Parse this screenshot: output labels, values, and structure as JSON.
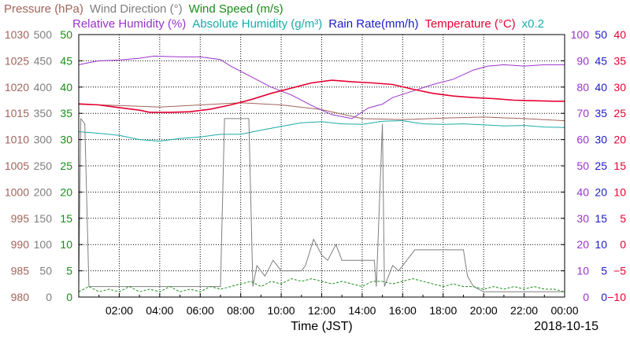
{
  "chart_data": {
    "type": "line",
    "date_label": "2018-10-15",
    "x_axis_label": "Time (JST)",
    "x_tick_labels": [
      "02:00",
      "04:00",
      "06:00",
      "08:00",
      "10:00",
      "12:00",
      "14:00",
      "16:00",
      "18:00",
      "20:00",
      "22:00",
      "00:00"
    ],
    "x_range_hours": [
      0,
      24
    ],
    "grid": true,
    "legend": {
      "row1": [
        {
          "text": "Pressure (hPa)",
          "color": "#a0645a"
        },
        {
          "text": "Wind Direction (°)",
          "color": "#7f7f7f"
        },
        {
          "text": "Wind Speed (m/s)",
          "color": "#1a8c1a"
        }
      ],
      "row2": [
        {
          "text": "Relative Humidity (%)",
          "color": "#9933cc"
        },
        {
          "text": "Absolute Humidity (g/m³)",
          "color": "#1aaaaa"
        },
        {
          "text": "Rain Rate(mm/h)",
          "color": "#1a1acc"
        },
        {
          "text": "Temperature (°C)",
          "color": "#e60033"
        },
        {
          "text": "x0.2",
          "color": "#1aaaaa"
        }
      ]
    },
    "axes": [
      {
        "name": "pressure",
        "color": "#a0645a",
        "range": [
          980,
          1030
        ],
        "ticks": [
          "1030",
          "1025",
          "1020",
          "1015",
          "1010",
          "1005",
          "1000",
          "995",
          "990",
          "985",
          "980"
        ]
      },
      {
        "name": "wind-direction",
        "color": "#7f7f7f",
        "range": [
          0,
          500
        ],
        "ticks": [
          "500",
          "450",
          "400",
          "350",
          "300",
          "250",
          "200",
          "150",
          "100",
          "50",
          "0"
        ]
      },
      {
        "name": "wind-speed",
        "color": "#1a8c1a",
        "range": [
          0,
          50
        ],
        "ticks": [
          "50",
          "45",
          "40",
          "35",
          "30",
          "25",
          "20",
          "15",
          "10",
          "5",
          "0"
        ]
      },
      {
        "name": "relative-humidity",
        "color": "#9933cc",
        "range": [
          0,
          100
        ],
        "ticks": [
          "100",
          "90",
          "80",
          "70",
          "60",
          "50",
          "40",
          "30",
          "20",
          "10",
          "0"
        ]
      },
      {
        "name": "rain-rate",
        "color": "#1a1acc",
        "range": [
          0,
          50
        ],
        "ticks": [
          "50",
          "45",
          "40",
          "35",
          "30",
          "25",
          "20",
          "15",
          "10",
          "5",
          "0"
        ]
      },
      {
        "name": "temperature",
        "color": "#e60033",
        "range": [
          -10,
          40
        ],
        "ticks": [
          "40",
          "35",
          "30",
          "25",
          "20",
          "15",
          "10",
          "5",
          "0",
          "−5",
          "−10"
        ]
      }
    ],
    "series": [
      {
        "key": "pressure",
        "color": "#a0645a",
        "axis": "pressure",
        "x": [
          0,
          2,
          4,
          6,
          8,
          10,
          12,
          14,
          16,
          18,
          20,
          22,
          24
        ],
        "y": [
          1016.7,
          1016.5,
          1016.2,
          1016.6,
          1017.0,
          1016.6,
          1015.7,
          1014.0,
          1013.8,
          1014.1,
          1014.3,
          1014.0,
          1013.6
        ]
      },
      {
        "key": "relative-humidity",
        "color": "#9933cc",
        "axis": "relative-humidity",
        "x": [
          0,
          0.3,
          1,
          2,
          3,
          3.7,
          5,
          6,
          7,
          7.5,
          8.5,
          9.5,
          10.5,
          11.5,
          12.5,
          13.5,
          14.3,
          15,
          15.5,
          16.5,
          17.5,
          18.5,
          19.5,
          20.2,
          21,
          22,
          23,
          24
        ],
        "y": [
          88.5,
          89,
          90,
          90.3,
          91,
          91.8,
          91.5,
          91.5,
          90.5,
          88,
          84,
          80,
          77,
          73,
          69.5,
          68,
          72,
          73.5,
          76,
          78.5,
          81,
          83,
          86.5,
          88,
          88.5,
          88,
          88.5,
          88.5
        ]
      },
      {
        "key": "absolute-humidity",
        "color": "#1aaaaa",
        "axis": "wind-speed",
        "x": [
          0,
          1,
          2,
          3,
          4,
          5,
          6,
          7,
          8,
          9,
          10,
          11,
          12,
          13,
          14,
          15,
          16,
          17,
          18,
          19,
          20,
          21,
          22,
          23,
          24
        ],
        "y": [
          31.5,
          31.2,
          30.8,
          30.0,
          29.7,
          30.2,
          30.5,
          31.0,
          31.0,
          31.8,
          32.5,
          33.2,
          33.4,
          33.0,
          32.9,
          33.5,
          33.6,
          33.0,
          32.9,
          33.0,
          32.8,
          32.6,
          32.7,
          32.4,
          32.3
        ]
      },
      {
        "key": "temperature",
        "color": "#e60033",
        "axis": "temperature",
        "x": [
          0,
          1,
          2,
          3,
          3.5,
          4.5,
          5.5,
          6.5,
          7.5,
          8.5,
          9.5,
          10.5,
          11.5,
          12.5,
          13.5,
          14.5,
          15.5,
          16.5,
          17.5,
          18.5,
          19.5,
          20.5,
          21.5,
          22.5,
          23.5,
          24
        ],
        "y": [
          26.8,
          26.6,
          26.1,
          25.6,
          25.2,
          25.2,
          25.3,
          25.8,
          26.6,
          27.6,
          28.8,
          29.8,
          30.8,
          31.3,
          31.0,
          30.8,
          30.5,
          29.6,
          28.8,
          28.3,
          28.0,
          27.8,
          27.5,
          27.4,
          27.3,
          27.3
        ]
      },
      {
        "key": "wind-direction",
        "color": "#7f7f7f",
        "axis": "wind-direction",
        "x": [
          0,
          0.1,
          0.3,
          0.5,
          1,
          2,
          3,
          4,
          5,
          6,
          7,
          7.2,
          7.5,
          8.4,
          8.6,
          8.8,
          9.2,
          9.6,
          10,
          10.5,
          11,
          11.2,
          11.6,
          12,
          12.3,
          12.7,
          13,
          13.5,
          14,
          14.3,
          14.6,
          14.7,
          15,
          15.1,
          15.5,
          15.8,
          16.2,
          16.6,
          17,
          17.5,
          18,
          18.5,
          19,
          19.2,
          19.5,
          20,
          21,
          22,
          23,
          24
        ],
        "y": [
          20,
          340,
          330,
          20,
          20,
          20,
          20,
          20,
          20,
          20,
          20,
          340,
          340,
          340,
          20,
          60,
          40,
          70,
          50,
          50,
          50,
          60,
          110,
          80,
          70,
          100,
          70,
          70,
          70,
          70,
          70,
          20,
          330,
          20,
          60,
          50,
          70,
          90,
          90,
          90,
          90,
          90,
          90,
          40,
          20,
          10,
          10,
          10,
          10,
          10
        ]
      },
      {
        "key": "wind-speed",
        "color": "#1a8c1a",
        "axis": "wind-speed",
        "x": [
          0,
          0.5,
          1,
          1.5,
          2,
          2.5,
          3,
          3.5,
          4,
          4.5,
          5,
          5.5,
          6,
          6.5,
          7,
          7.5,
          8,
          8.5,
          9,
          9.5,
          10,
          10.5,
          11,
          11.5,
          12,
          12.5,
          13,
          13.5,
          14,
          14.5,
          15,
          15.5,
          16,
          16.5,
          17,
          17.5,
          18,
          18.5,
          19,
          19.5,
          20,
          20.5,
          21,
          21.5,
          22,
          22.5,
          23,
          23.5,
          24
        ],
        "y": [
          1,
          2,
          1,
          1.5,
          1,
          2,
          1,
          1.5,
          1,
          2,
          1,
          1.5,
          1,
          2,
          1.5,
          2,
          2.5,
          3,
          2,
          3,
          2.5,
          3.5,
          3,
          3.5,
          3,
          2.5,
          3,
          2.5,
          2,
          3,
          3,
          2.5,
          3,
          3.5,
          3,
          2.5,
          2,
          2.5,
          2,
          2,
          1.5,
          2,
          1.5,
          2,
          1.5,
          2,
          1.5,
          1.5,
          1
        ]
      },
      {
        "key": "rain-rate",
        "color": "#1a1acc",
        "axis": "rain-rate",
        "x": [
          0,
          24
        ],
        "y": [
          0,
          0
        ]
      }
    ]
  }
}
